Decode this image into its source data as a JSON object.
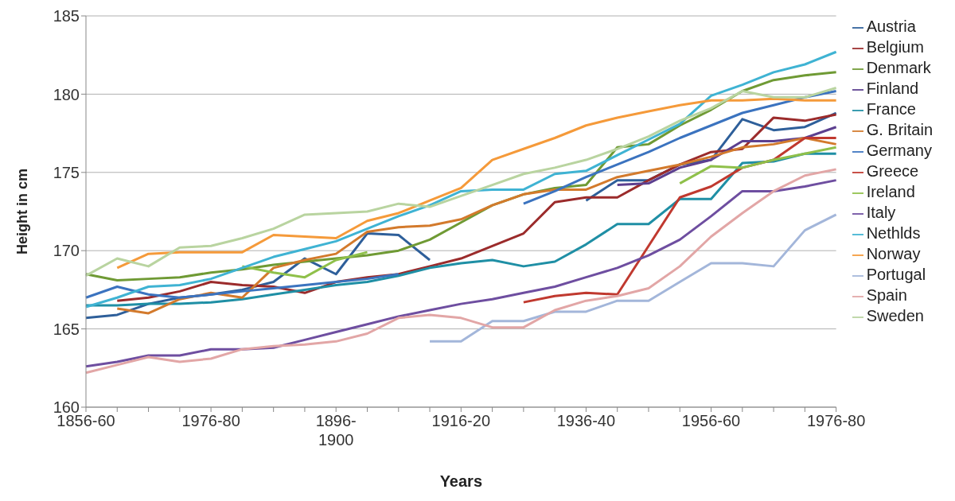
{
  "chart_data": {
    "type": "line",
    "xlabel": "Years",
    "ylabel": "Height in cm",
    "categories": [
      "1856-60",
      null,
      null,
      null,
      "1976-80",
      null,
      null,
      null,
      "1896-1900",
      null,
      null,
      null,
      "1916-20",
      null,
      null,
      null,
      "1936-40",
      null,
      null,
      null,
      "1956-60",
      null,
      null,
      null,
      "1976-80"
    ],
    "ylim": [
      160,
      185
    ],
    "yticks": [
      160,
      165,
      170,
      175,
      180,
      185
    ],
    "grid": "y",
    "legend": "right",
    "marker": "none",
    "line_style": "solid",
    "series": [
      {
        "name": "Austria",
        "color": "#2e5f9a",
        "values": [
          165.7,
          165.9,
          166.6,
          167.0,
          167.2,
          167.5,
          168.0,
          169.5,
          168.5,
          171.1,
          171.0,
          169.4,
          null,
          null,
          null,
          null,
          173.2,
          174.5,
          174.5,
          175.5,
          175.8,
          178.4,
          177.7,
          177.9,
          178.8
        ]
      },
      {
        "name": "Belgium",
        "color": "#9b2b2b",
        "values": [
          null,
          166.8,
          167.0,
          167.4,
          168.0,
          167.8,
          167.7,
          167.3,
          168.0,
          168.3,
          168.5,
          169.0,
          169.5,
          170.3,
          171.1,
          173.1,
          173.4,
          173.4,
          174.5,
          175.5,
          176.3,
          176.5,
          178.5,
          178.3,
          178.7
        ]
      },
      {
        "name": "Denmark",
        "color": "#6f9a34",
        "values": [
          168.5,
          168.1,
          168.2,
          168.3,
          168.6,
          168.8,
          169.1,
          169.3,
          169.5,
          169.7,
          170.0,
          170.7,
          171.8,
          172.9,
          173.6,
          174.0,
          174.2,
          176.6,
          176.8,
          178.0,
          179.0,
          180.2,
          180.9,
          181.2,
          181.4
        ]
      },
      {
        "name": "Finland",
        "color": "#5c3f8f",
        "values": [
          null,
          null,
          null,
          null,
          null,
          null,
          null,
          null,
          null,
          null,
          null,
          null,
          null,
          null,
          null,
          null,
          null,
          174.2,
          174.3,
          175.3,
          175.8,
          177.0,
          177.0,
          177.2,
          177.9
        ]
      },
      {
        "name": "France",
        "color": "#1f8fa5",
        "values": [
          166.5,
          166.5,
          166.6,
          166.6,
          166.7,
          166.9,
          167.2,
          167.5,
          167.8,
          168.0,
          168.4,
          168.9,
          169.2,
          169.4,
          169.0,
          169.3,
          170.4,
          171.7,
          171.7,
          173.3,
          173.3,
          175.6,
          175.7,
          176.2,
          176.2
        ]
      },
      {
        "name": "G. Britain",
        "color": "#d37a2c",
        "values": [
          null,
          166.3,
          166.0,
          166.9,
          167.3,
          167.0,
          168.9,
          169.4,
          169.8,
          171.2,
          171.5,
          171.6,
          172.0,
          172.9,
          173.6,
          173.9,
          173.9,
          174.7,
          175.1,
          175.5,
          176.0,
          176.6,
          176.8,
          177.2,
          176.8
        ]
      },
      {
        "name": "Germany",
        "color": "#3b73bf",
        "values": [
          167.0,
          167.7,
          167.2,
          167.0,
          167.2,
          167.4,
          167.6,
          167.8,
          168.0,
          168.2,
          168.5,
          null,
          null,
          null,
          173.0,
          173.8,
          174.7,
          175.5,
          176.3,
          177.2,
          178.0,
          178.8,
          179.3,
          179.8,
          180.2
        ]
      },
      {
        "name": "Greece",
        "color": "#c0392f",
        "values": [
          null,
          null,
          null,
          null,
          null,
          null,
          null,
          null,
          null,
          null,
          null,
          null,
          null,
          null,
          166.7,
          167.1,
          167.3,
          167.2,
          170.3,
          173.4,
          174.1,
          175.3,
          175.8,
          177.2,
          177.2
        ]
      },
      {
        "name": "Ireland",
        "color": "#8fc04a",
        "values": [
          null,
          null,
          null,
          null,
          null,
          169.0,
          168.6,
          168.3,
          169.4,
          169.9,
          null,
          null,
          null,
          null,
          null,
          null,
          null,
          null,
          null,
          174.3,
          175.4,
          175.3,
          175.8,
          176.2,
          176.6
        ]
      },
      {
        "name": "Italy",
        "color": "#6e4ea0",
        "values": [
          162.6,
          162.9,
          163.3,
          163.3,
          163.7,
          163.7,
          163.8,
          164.3,
          164.8,
          165.3,
          165.8,
          166.2,
          166.6,
          166.9,
          167.3,
          167.7,
          168.3,
          168.9,
          169.7,
          170.7,
          172.2,
          173.8,
          173.8,
          174.1,
          174.5
        ]
      },
      {
        "name": "Nethlds",
        "color": "#3fb3d3",
        "values": [
          166.4,
          167.0,
          167.7,
          167.8,
          168.2,
          168.9,
          169.6,
          170.1,
          170.6,
          171.4,
          172.2,
          172.9,
          173.8,
          173.9,
          173.9,
          174.9,
          175.1,
          176.1,
          177.1,
          178.1,
          179.9,
          180.6,
          181.4,
          181.9,
          182.7
        ]
      },
      {
        "name": "Norway",
        "color": "#f59a3a",
        "values": [
          null,
          168.9,
          169.8,
          169.9,
          169.9,
          169.9,
          171.0,
          170.9,
          170.8,
          171.9,
          172.4,
          173.2,
          174.0,
          175.8,
          176.5,
          177.2,
          178.0,
          178.5,
          178.9,
          179.3,
          179.6,
          179.6,
          179.7,
          179.6,
          179.6
        ]
      },
      {
        "name": "Portugal",
        "color": "#a3b6da",
        "values": [
          null,
          null,
          null,
          null,
          null,
          null,
          null,
          null,
          null,
          null,
          null,
          164.2,
          164.2,
          165.5,
          165.5,
          166.1,
          166.1,
          166.8,
          166.8,
          168.0,
          169.2,
          169.2,
          169.0,
          171.3,
          172.3
        ]
      },
      {
        "name": "Spain",
        "color": "#e2a6a6",
        "values": [
          162.2,
          162.7,
          163.2,
          162.9,
          163.1,
          163.7,
          163.9,
          164.0,
          164.2,
          164.7,
          165.7,
          165.9,
          165.7,
          165.1,
          165.1,
          166.2,
          166.8,
          167.1,
          167.6,
          169.0,
          170.9,
          172.4,
          173.8,
          174.8,
          175.2
        ]
      },
      {
        "name": "Sweden",
        "color": "#b9d4a0",
        "values": [
          168.4,
          169.5,
          169.0,
          170.2,
          170.3,
          170.8,
          171.4,
          172.3,
          172.4,
          172.5,
          173.0,
          172.8,
          173.5,
          174.2,
          174.9,
          175.3,
          175.8,
          176.5,
          177.3,
          178.3,
          179.1,
          180.2,
          179.8,
          179.8,
          180.4
        ]
      }
    ]
  }
}
